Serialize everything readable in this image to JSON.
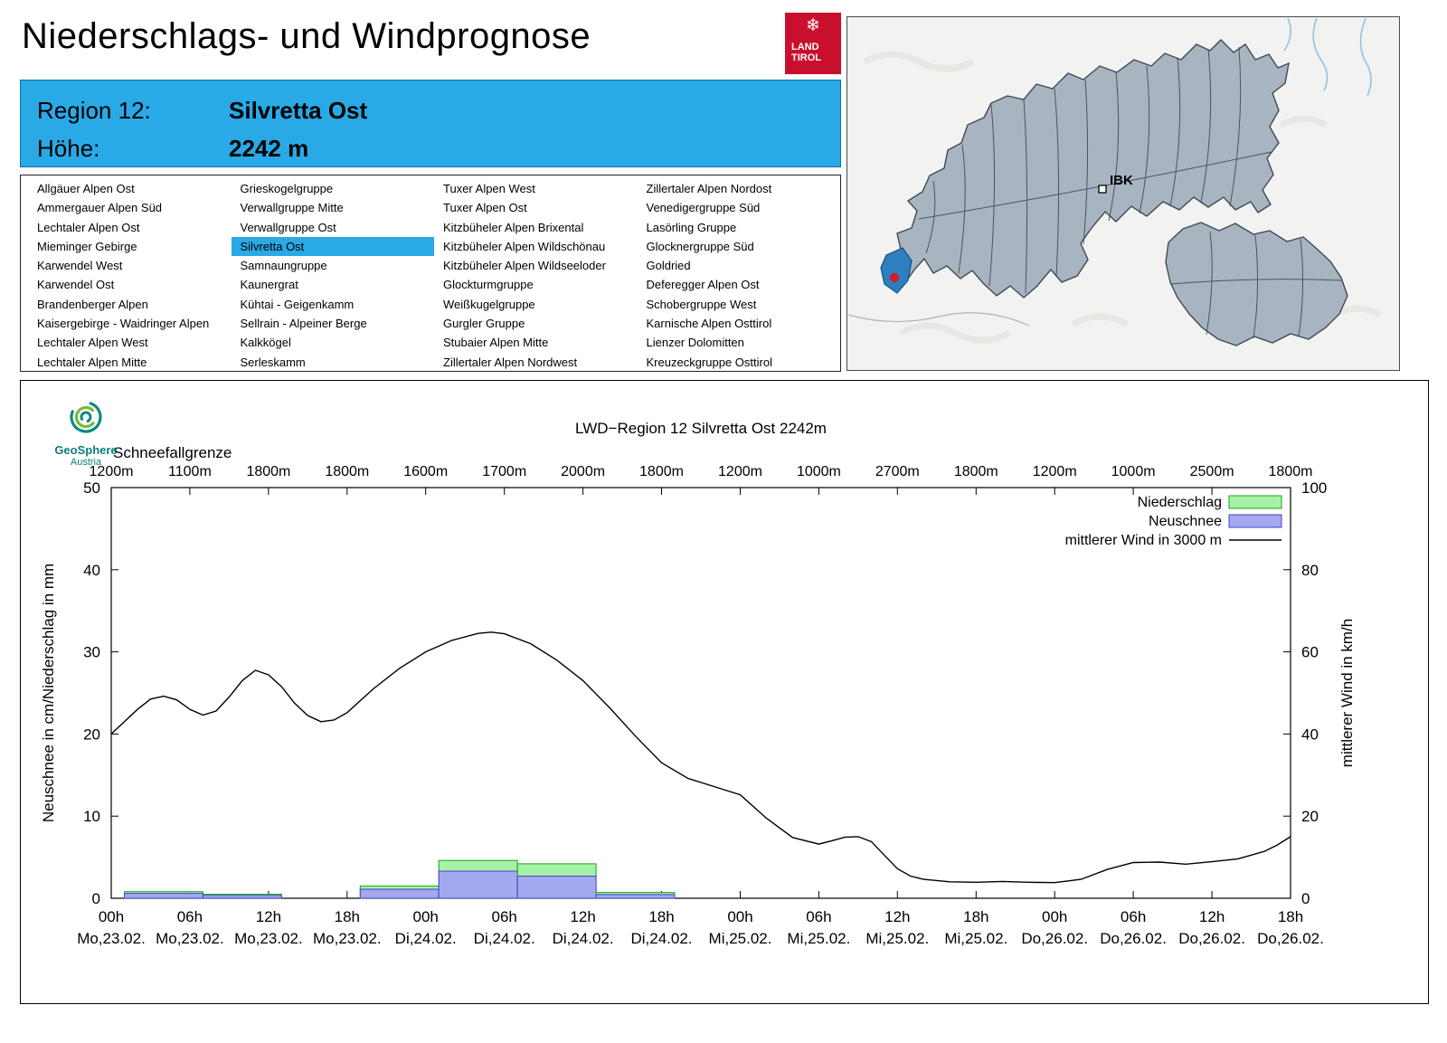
{
  "header": {
    "title": "Niederschlags- und Windprognose",
    "logo_line1": "LAND",
    "logo_line2": "TIROL",
    "logo_color": "#c8102e"
  },
  "region_info": {
    "region_label": "Region 12:",
    "region_value": "Silvretta Ost",
    "altitude_label": "Höhe:",
    "altitude_value": "2242 m",
    "background": "#29a9e6"
  },
  "region_list": {
    "selected": "Silvretta Ost",
    "columns": [
      [
        "Allgäuer Alpen Ost",
        "Ammergauer Alpen Süd",
        "Lechtaler Alpen Ost",
        "Mieminger Gebirge",
        "Karwendel West",
        "Karwendel Ost",
        "Brandenberger Alpen",
        "Kaisergebirge - Waidringer Alpen",
        "Lechtaler Alpen West",
        "Lechtaler Alpen Mitte"
      ],
      [
        "Grieskogelgruppe",
        "Verwallgruppe Mitte",
        "Verwallgruppe Ost",
        "Silvretta Ost",
        "Samnaungruppe",
        "Kaunergrat",
        "Kühtai - Geigenkamm",
        "Sellrain - Alpeiner Berge",
        "Kalkkögel",
        "Serleskamm"
      ],
      [
        "Tuxer Alpen West",
        "Tuxer Alpen Ost",
        "Kitzbüheler Alpen Brixental",
        "Kitzbüheler Alpen Wildschönau",
        "Kitzbüheler Alpen Wildseeloder",
        "Glockturmgruppe",
        "Weißkugelgruppe",
        "Gurgler Gruppe",
        "Stubaier Alpen Mitte",
        "Zillertaler Alpen Nordwest"
      ],
      [
        "Zillertaler Alpen Nordost",
        "Venedigergruppe Süd",
        "Lasörling Gruppe",
        "Glocknergruppe Süd",
        "Goldried",
        "Deferegger Alpen Ost",
        "Schobergruppe West",
        "Karnische Alpen Osttirol",
        "Lienzer Dolomitten",
        "Kreuzeckgruppe Osttirol"
      ]
    ]
  },
  "map": {
    "city_label": "IBK"
  },
  "chart_logo": {
    "line1": "GeoSphere",
    "line2": "Austria"
  },
  "chart_data": {
    "type": "line+bar",
    "title": "LWD−Region 12 Silvretta Ost 2242m",
    "snowline_label": "Schneefallgrenze",
    "snowline_values": [
      "1200m",
      "1100m",
      "1800m",
      "1800m",
      "1600m",
      "1700m",
      "2000m",
      "1800m",
      "1200m",
      "1000m",
      "2700m",
      "1800m",
      "1200m",
      "1000m",
      "2500m",
      "1800m"
    ],
    "ylabel_left": "Neuschnee in cm/Niederschlag in mm",
    "ylabel_right": "mittlerer Wind in km/h",
    "ylim_left": [
      0,
      50
    ],
    "ylim_right": [
      0,
      100
    ],
    "x_range_hours": [
      0,
      90
    ],
    "x_hours": [
      "00h",
      "06h",
      "12h",
      "18h",
      "00h",
      "06h",
      "12h",
      "18h",
      "00h",
      "06h",
      "12h",
      "18h",
      "00h",
      "06h",
      "12h",
      "18h"
    ],
    "x_dates": [
      "Mo,23.02.",
      "Mo,23.02.",
      "Mo,23.02.",
      "Mo,23.02.",
      "Di,24.02.",
      "Di,24.02.",
      "Di,24.02.",
      "Di,24.02.",
      "Mi,25.02.",
      "Mi,25.02.",
      "Mi,25.02.",
      "Mi,25.02.",
      "Do,26.02.",
      "Do,26.02.",
      "Do,26.02.",
      "Do,26.02."
    ],
    "legend": [
      {
        "label": "Niederschlag",
        "type": "box",
        "fill": "#a6f1a6",
        "stroke": "#18a818"
      },
      {
        "label": "Neuschnee",
        "type": "box",
        "fill": "#a3a8ef",
        "stroke": "#4444cc"
      },
      {
        "label": "mittlerer Wind in 3000 m",
        "type": "line",
        "stroke": "#000000"
      }
    ],
    "colors": {
      "niederschlag_fill": "#a6f1a6",
      "niederschlag_stroke": "#18a818",
      "neuschnee_fill": "#a3a8ef",
      "neuschnee_stroke": "#4444cc",
      "wind": "#000000"
    },
    "bars": [
      {
        "t0": 1,
        "t1": 7,
        "niederschlag": 0.8,
        "neuschnee": 0.6
      },
      {
        "t0": 7,
        "t1": 13,
        "niederschlag": 0.5,
        "neuschnee": 0.35
      },
      {
        "t0": 19,
        "t1": 25,
        "niederschlag": 1.5,
        "neuschnee": 1.1
      },
      {
        "t0": 25,
        "t1": 31,
        "niederschlag": 4.6,
        "neuschnee": 3.3
      },
      {
        "t0": 31,
        "t1": 37,
        "niederschlag": 4.2,
        "neuschnee": 2.7
      },
      {
        "t0": 37,
        "t1": 43,
        "niederschlag": 0.7,
        "neuschnee": 0.45
      }
    ],
    "wind_series": {
      "name": "mittlerer Wind in 3000 m",
      "units": "km/h",
      "points": [
        [
          0,
          40
        ],
        [
          2,
          46
        ],
        [
          3,
          48.5
        ],
        [
          4,
          49.2
        ],
        [
          5,
          48.3
        ],
        [
          6,
          46
        ],
        [
          7,
          44.6
        ],
        [
          8,
          45.6
        ],
        [
          9,
          49
        ],
        [
          10,
          53
        ],
        [
          11,
          55.5
        ],
        [
          12,
          54.4
        ],
        [
          13,
          51.5
        ],
        [
          14,
          47.5
        ],
        [
          15,
          44.5
        ],
        [
          16,
          43
        ],
        [
          17,
          43.4
        ],
        [
          18,
          45.2
        ],
        [
          20,
          51
        ],
        [
          22,
          56
        ],
        [
          24,
          60
        ],
        [
          26,
          62.8
        ],
        [
          28,
          64.5
        ],
        [
          29,
          64.8
        ],
        [
          30,
          64.4
        ],
        [
          32,
          62
        ],
        [
          34,
          58
        ],
        [
          36,
          53
        ],
        [
          38,
          46.5
        ],
        [
          40,
          39.5
        ],
        [
          42,
          33
        ],
        [
          44,
          29.2
        ],
        [
          46,
          27.2
        ],
        [
          48,
          25.2
        ],
        [
          50,
          19.5
        ],
        [
          52,
          14.8
        ],
        [
          54,
          13.2
        ],
        [
          55,
          14
        ],
        [
          56,
          14.9
        ],
        [
          57,
          15
        ],
        [
          58,
          13.8
        ],
        [
          59,
          10.5
        ],
        [
          60,
          7.2
        ],
        [
          61,
          5.4
        ],
        [
          62,
          4.6
        ],
        [
          64,
          4
        ],
        [
          66,
          3.9
        ],
        [
          68,
          4.1
        ],
        [
          70,
          3.9
        ],
        [
          72,
          3.8
        ],
        [
          74,
          4.6
        ],
        [
          76,
          7
        ],
        [
          78,
          8.7
        ],
        [
          80,
          8.8
        ],
        [
          82,
          8.3
        ],
        [
          84,
          8.9
        ],
        [
          86,
          9.6
        ],
        [
          88,
          11.4
        ],
        [
          89,
          13
        ],
        [
          90,
          15
        ]
      ]
    }
  }
}
